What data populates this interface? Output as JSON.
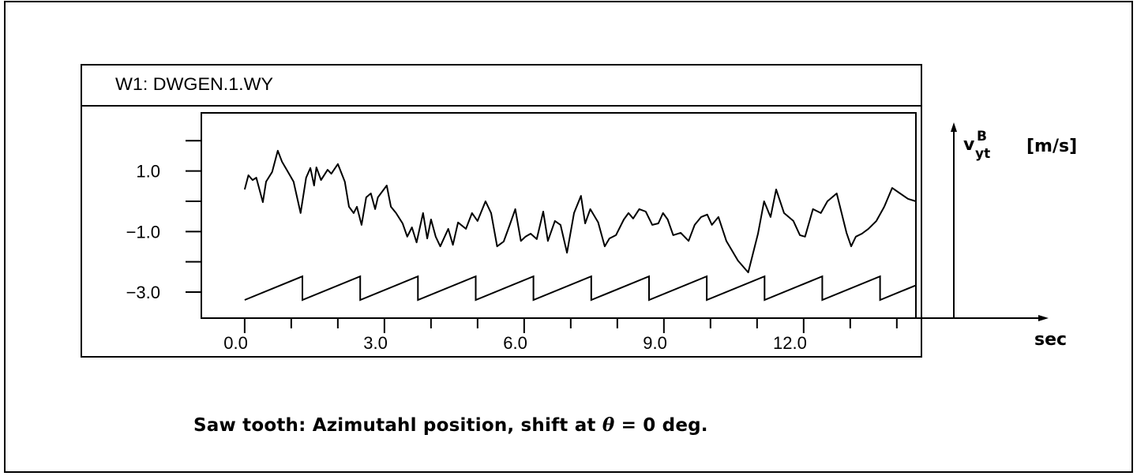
{
  "chart_data": {
    "type": "line",
    "window_title": "W1:  DWGEN.1.WY",
    "ylabel": "v",
    "ylabel_sub": "yt",
    "ylabel_sup": "B",
    "yunit": "[m/s]",
    "xlabel": "sec",
    "caption_prefix": "Saw tooth: Azimutahl position, shift at ",
    "caption_theta": "θ",
    "caption_suffix": " = 0 deg.",
    "xlim": [
      -0.93,
      14.41
    ],
    "ylim": [
      -3.86,
      2.92
    ],
    "grid": false,
    "x_ticks": [
      0,
      1,
      2,
      3,
      4,
      5,
      6,
      7,
      8,
      9,
      10,
      11,
      12,
      13,
      14
    ],
    "x_tick_labels": [
      {
        "value": 0,
        "label": "0.0"
      },
      {
        "value": 3,
        "label": "3.0"
      },
      {
        "value": 6,
        "label": "6.0"
      },
      {
        "value": 9,
        "label": "9.0"
      },
      {
        "value": 12,
        "label": "12.0"
      }
    ],
    "y_ticks": [
      2,
      1,
      0,
      -1,
      -2,
      -3
    ],
    "y_tick_labels": [
      {
        "value": 1,
        "label": "1.0"
      },
      {
        "value": -1,
        "label": "−1.0"
      },
      {
        "value": -3,
        "label": "−3.0"
      }
    ],
    "series": [
      {
        "x": [
          0.0,
          0.08,
          0.17,
          0.25,
          0.39,
          0.46,
          0.59,
          0.71,
          0.8,
          0.93,
          1.05,
          1.2,
          1.32,
          1.41,
          1.49,
          1.54,
          1.64,
          1.78,
          1.86,
          2.0,
          2.15,
          2.24,
          2.34,
          2.41,
          2.51,
          2.61,
          2.71,
          2.8,
          2.86,
          3.05,
          3.14,
          3.25,
          3.39,
          3.49,
          3.59,
          3.69,
          3.83,
          3.92,
          4.0,
          4.1,
          4.2,
          4.37,
          4.47,
          4.58,
          4.75,
          4.88,
          5.0,
          5.17,
          5.29,
          5.42,
          5.56,
          5.69,
          5.81,
          5.93,
          6.03,
          6.14,
          6.27,
          6.41,
          6.51,
          6.66,
          6.78,
          6.92,
          7.07,
          7.22,
          7.31,
          7.42,
          7.59,
          7.73,
          7.83,
          7.97,
          8.14,
          8.24,
          8.34,
          8.47,
          8.61,
          8.75,
          8.88,
          8.98,
          9.08,
          9.2,
          9.36,
          9.53,
          9.66,
          9.8,
          9.93,
          10.03,
          10.17,
          10.34,
          10.59,
          10.81,
          11.02,
          11.15,
          11.29,
          11.41,
          11.58,
          11.78,
          11.92,
          12.03,
          12.2,
          12.37,
          12.51,
          12.71,
          12.92,
          13.02,
          13.12,
          13.25,
          13.39,
          13.56,
          13.73,
          13.9,
          14.07,
          14.24,
          14.41
        ],
        "y": [
          0.39,
          0.86,
          0.7,
          0.78,
          -0.03,
          0.65,
          0.97,
          1.67,
          1.31,
          0.97,
          0.65,
          -0.39,
          0.78,
          1.1,
          0.52,
          1.12,
          0.7,
          1.04,
          0.91,
          1.23,
          0.65,
          -0.18,
          -0.39,
          -0.18,
          -0.78,
          0.13,
          0.26,
          -0.26,
          0.13,
          0.52,
          -0.18,
          -0.39,
          -0.73,
          -1.17,
          -0.86,
          -1.36,
          -0.39,
          -1.23,
          -0.6,
          -1.17,
          -1.49,
          -0.91,
          -1.44,
          -0.7,
          -0.91,
          -0.39,
          -0.65,
          0.0,
          -0.39,
          -1.49,
          -1.33,
          -0.78,
          -0.26,
          -1.31,
          -1.17,
          -1.07,
          -1.25,
          -0.34,
          -1.31,
          -0.65,
          -0.78,
          -1.7,
          -0.39,
          0.18,
          -0.73,
          -0.26,
          -0.7,
          -1.49,
          -1.23,
          -1.12,
          -0.6,
          -0.39,
          -0.57,
          -0.26,
          -0.34,
          -0.78,
          -0.73,
          -0.39,
          -0.6,
          -1.12,
          -1.04,
          -1.31,
          -0.78,
          -0.52,
          -0.44,
          -0.78,
          -0.52,
          -1.31,
          -1.96,
          -2.35,
          -1.07,
          0.0,
          -0.52,
          0.39,
          -0.39,
          -0.65,
          -1.12,
          -1.17,
          -0.26,
          -0.39,
          0.0,
          0.26,
          -1.04,
          -1.49,
          -1.17,
          -1.07,
          -0.91,
          -0.65,
          -0.18,
          0.44,
          0.26,
          0.08,
          0.0
        ]
      },
      {
        "kind": "sawtooth",
        "period": 1.24,
        "low": -3.26,
        "high": -2.48,
        "start": 0.0,
        "end": 14.41
      }
    ]
  }
}
